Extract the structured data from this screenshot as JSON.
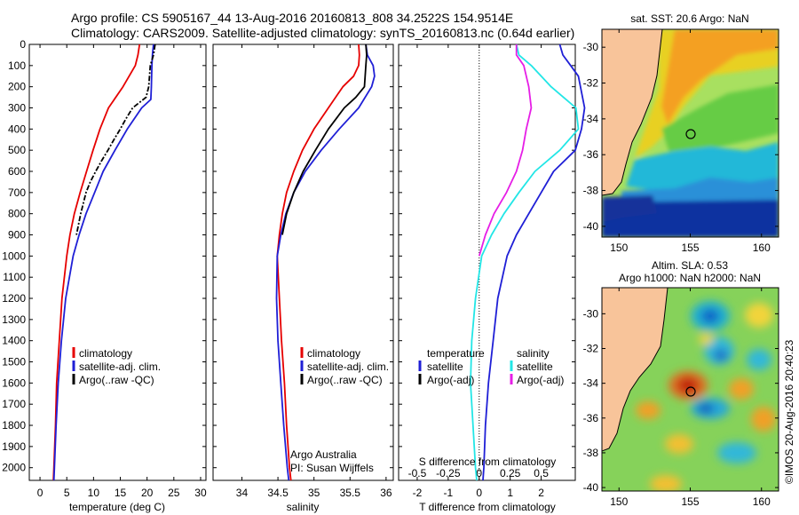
{
  "header": {
    "line1": "Argo profile: CS 5905167_44 13-Aug-2016 20160813_808 34.2522S 154.9514E",
    "line2": "Climatology: CARS2009. Satellite-adjusted climatology: synTS_20160813.nc (0.64d earlier)"
  },
  "colors": {
    "red": "#e60000",
    "blue": "#1f1fd6",
    "black": "#000000",
    "cyan": "#22e6e6",
    "magenta": "#e61ee6"
  },
  "chart_data": [
    {
      "type": "line",
      "id": "temperature",
      "xlabel": "temperature (deg C)",
      "ylabel": "",
      "xlim": [
        -2,
        31
      ],
      "ylim": [
        0,
        2060
      ],
      "xticks": [
        "0",
        "5",
        "10",
        "15",
        "20",
        "25",
        "30"
      ],
      "yticks": [
        "0",
        "100",
        "200",
        "300",
        "400",
        "500",
        "600",
        "700",
        "800",
        "900",
        "1000",
        "1100",
        "1200",
        "1300",
        "1400",
        "1500",
        "1600",
        "1700",
        "1800",
        "1900",
        "2000"
      ],
      "legend": [
        "climatology",
        "satellite-adj. clim.",
        "Argo(..raw -QC)"
      ],
      "series": [
        {
          "name": "climatology",
          "color": "red",
          "y": [
            0,
            50,
            100,
            200,
            300,
            400,
            500,
            600,
            700,
            800,
            900,
            1000,
            1200,
            1400,
            1600,
            1800,
            2000,
            2060
          ],
          "x": [
            18.6,
            18.3,
            17.8,
            15.5,
            12.8,
            11.2,
            9.9,
            8.7,
            7.5,
            6.4,
            5.6,
            5.0,
            4.1,
            3.6,
            3.1,
            2.9,
            2.6,
            2.5
          ]
        },
        {
          "name": "satellite-adj. clim.",
          "color": "blue",
          "y": [
            0,
            50,
            100,
            200,
            260,
            300,
            400,
            500,
            600,
            700,
            800,
            900,
            1000,
            1200,
            1400,
            1600,
            1800,
            2000,
            2060
          ],
          "x": [
            21.2,
            21.0,
            20.9,
            20.8,
            20.7,
            19.0,
            16.3,
            14.0,
            11.8,
            10.2,
            8.6,
            7.3,
            6.2,
            4.8,
            4.0,
            3.4,
            3.0,
            2.7,
            2.6
          ]
        },
        {
          "name": "Argo(..raw -QC)",
          "color": "black",
          "y": [
            0,
            50,
            100,
            200,
            250,
            300,
            350,
            400,
            450,
            500,
            550,
            600,
            650,
            700,
            750,
            800,
            850,
            900
          ],
          "x": [
            21.5,
            21.2,
            20.6,
            20.3,
            19.8,
            17.3,
            16.1,
            15.0,
            13.8,
            12.7,
            11.5,
            10.4,
            9.4,
            8.6,
            8.1,
            7.6,
            7.2,
            6.8
          ]
        }
      ]
    },
    {
      "type": "line",
      "id": "salinity",
      "xlabel": "salinity",
      "ylabel": "",
      "xlim": [
        33.6,
        36.1
      ],
      "ylim": [
        0,
        2060
      ],
      "xticks": [
        "34",
        "34.5",
        "35",
        "35.5",
        "36"
      ],
      "legend": [
        "climatology",
        "satellite-adj. clim.",
        "Argo(..raw -QC)"
      ],
      "annotation": [
        "Argo Australia",
        "PI: Susan Wijffels"
      ],
      "series": [
        {
          "name": "climatology",
          "color": "red",
          "y": [
            0,
            50,
            100,
            150,
            200,
            300,
            400,
            500,
            600,
            700,
            800,
            900,
            1000,
            1200,
            1400,
            1600,
            1800,
            2000,
            2060
          ],
          "x": [
            35.62,
            35.63,
            35.62,
            35.55,
            35.4,
            35.2,
            35.0,
            34.84,
            34.72,
            34.62,
            34.56,
            34.52,
            34.49,
            34.52,
            34.55,
            34.59,
            34.62,
            34.66,
            34.68
          ]
        },
        {
          "name": "satellite-adj. clim.",
          "color": "blue",
          "y": [
            0,
            50,
            100,
            150,
            200,
            300,
            400,
            500,
            600,
            700,
            800,
            900,
            1000,
            1200,
            1400,
            1600,
            1800,
            2000,
            2060
          ],
          "x": [
            35.72,
            35.74,
            35.82,
            35.84,
            35.8,
            35.62,
            35.35,
            35.1,
            34.88,
            34.72,
            34.61,
            34.54,
            34.49,
            34.48,
            34.5,
            34.54,
            34.58,
            34.63,
            34.65
          ]
        },
        {
          "name": "Argo(..raw -QC)",
          "color": "black",
          "y": [
            0,
            50,
            100,
            150,
            200,
            250,
            300,
            400,
            500,
            600,
            700,
            800,
            900
          ],
          "x": [
            35.72,
            35.73,
            35.72,
            35.71,
            35.7,
            35.58,
            35.42,
            35.2,
            35.02,
            34.85,
            34.72,
            34.62,
            34.56
          ]
        }
      ]
    },
    {
      "type": "line",
      "id": "difference",
      "xlabel": "T difference from climatology",
      "xlabel_top": "S difference from climatology",
      "xlim": [
        -2.6,
        3.1
      ],
      "ylim": [
        0,
        2060
      ],
      "xticks": [
        "-2",
        "-1",
        "0",
        "1",
        "2"
      ],
      "xticks_top": [
        "-0.5",
        "-0.25",
        "0",
        "0.25",
        "0.5"
      ],
      "legend_headers": [
        "temperature",
        "salinity"
      ],
      "legend": [
        "satellite",
        "Argo(-adj)",
        "satellite",
        "Argo(-adj)"
      ],
      "series": [
        {
          "name": "satellite",
          "color": "blue",
          "group": "temperature",
          "y": [
            0,
            50,
            100,
            150,
            300,
            400,
            500,
            600,
            700,
            800,
            900,
            1000,
            1200,
            1400,
            1600,
            1800,
            2000,
            2060
          ],
          "x": [
            2.6,
            2.7,
            2.95,
            3.2,
            3.4,
            3.3,
            3.1,
            2.4,
            2.0,
            1.6,
            1.2,
            0.9,
            0.6,
            0.45,
            0.3,
            0.2,
            0.15,
            0.12
          ]
        },
        {
          "name": "satellite",
          "color": "cyan",
          "group": "salinity",
          "y": [
            0,
            50,
            100,
            200,
            300,
            400,
            500,
            600,
            700,
            800,
            900,
            1000,
            1200,
            1400,
            1600,
            1800,
            2000,
            2060
          ],
          "x": [
            0.3,
            0.32,
            0.42,
            0.58,
            0.78,
            0.8,
            0.65,
            0.45,
            0.32,
            0.2,
            0.1,
            0.02,
            -0.03,
            -0.06,
            -0.07,
            -0.05,
            -0.03,
            -0.02
          ]
        },
        {
          "name": "Argo(-adj)",
          "color": "magenta",
          "group": "salinity",
          "y": [
            0,
            50,
            100,
            200,
            300,
            400,
            500,
            600,
            700,
            800,
            900,
            1000
          ],
          "x": [
            0.3,
            0.3,
            0.36,
            0.4,
            0.42,
            0.38,
            0.35,
            0.3,
            0.22,
            0.12,
            0.05,
            0.0
          ]
        }
      ]
    }
  ],
  "maps": {
    "sst": {
      "title": "sat. SST: 20.6  Argo: NaN",
      "yticks": [
        "-30",
        "-32",
        "-34",
        "-36",
        "-38",
        "-40"
      ],
      "xticks": [
        "150",
        "155",
        "160"
      ]
    },
    "sla": {
      "title_line1": "Altim. SLA: 0.53",
      "title_line2": "Argo h1000: NaN h2000: NaN",
      "yticks": [
        "-30",
        "-32",
        "-34",
        "-36",
        "-38",
        "-40"
      ],
      "xticks": [
        "150",
        "155",
        "160"
      ]
    }
  },
  "credit": "©IMOS 20-Aug-2016 20:40:23"
}
